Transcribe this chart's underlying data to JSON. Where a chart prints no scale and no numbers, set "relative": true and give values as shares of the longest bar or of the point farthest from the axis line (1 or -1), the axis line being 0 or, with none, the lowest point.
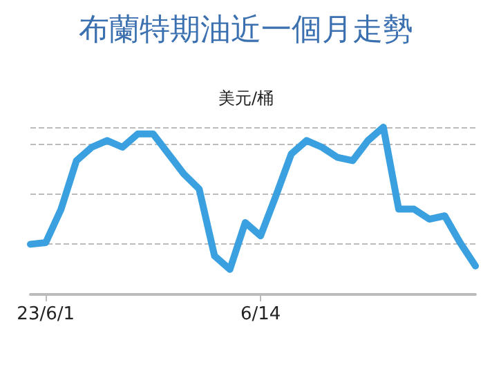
{
  "chart_data": {
    "type": "line",
    "title": "布蘭特期油近一個月走勢",
    "ylabel": "美元/桶",
    "relative": true,
    "grid": "y",
    "marker": "none",
    "line_style": "solid",
    "categories": [
      null,
      "23/6/1",
      null,
      null,
      null,
      null,
      null,
      null,
      null,
      null,
      null,
      null,
      null,
      null,
      null,
      "6/14",
      null,
      null,
      null,
      null,
      null,
      null,
      null,
      null,
      null,
      null,
      null,
      null,
      null,
      null
    ],
    "series": [
      {
        "color": "#3aa0e0",
        "values": [
          0.3,
          0.31,
          0.51,
          0.8,
          0.88,
          0.92,
          0.88,
          0.96,
          0.96,
          0.84,
          0.72,
          0.63,
          0.23,
          0.15,
          0.43,
          0.35,
          0.59,
          0.84,
          0.92,
          0.88,
          0.82,
          0.8,
          0.92,
          1,
          0.51,
          0.51,
          0.45,
          0.47,
          0.31,
          0.17
        ]
      }
    ]
  }
}
